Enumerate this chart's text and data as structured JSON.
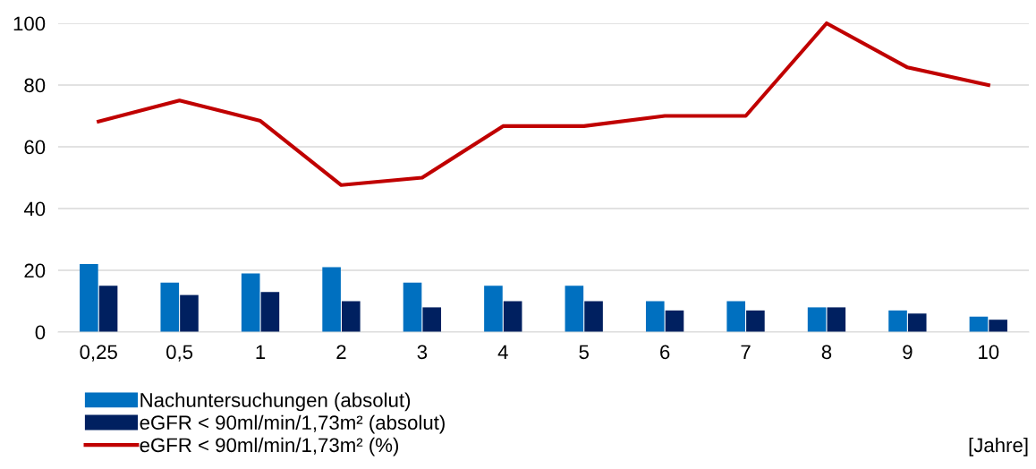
{
  "chart_data": {
    "type": "bar",
    "xlabel": "[Jahre]",
    "categories": [
      "0,25",
      "0,5",
      "1",
      "2",
      "3",
      "4",
      "5",
      "6",
      "7",
      "8",
      "9",
      "10"
    ],
    "series": [
      {
        "name": "Nachuntersuchungen (absolut)",
        "color": "#0070c0",
        "values": [
          22,
          16,
          19,
          21,
          16,
          15,
          15,
          10,
          10,
          8,
          7,
          5
        ]
      },
      {
        "name": "eGFR < 90ml/min/1,73m² (absolut)",
        "color": "#002060",
        "values": [
          15,
          12,
          13,
          10,
          8,
          10,
          10,
          7,
          7,
          8,
          6,
          4
        ]
      },
      {
        "name": "eGFR < 90ml/min/1,73m² (%)",
        "type": "line",
        "color": "#c00000",
        "values": [
          68.2,
          75,
          68.4,
          47.6,
          50,
          66.7,
          66.7,
          70,
          70,
          100,
          85.7,
          80
        ]
      }
    ],
    "ylim": [
      0,
      100
    ],
    "yticks": [
      0,
      20,
      40,
      60,
      80,
      100
    ],
    "grid": "y",
    "legend": "bottom left",
    "marker": "none"
  }
}
